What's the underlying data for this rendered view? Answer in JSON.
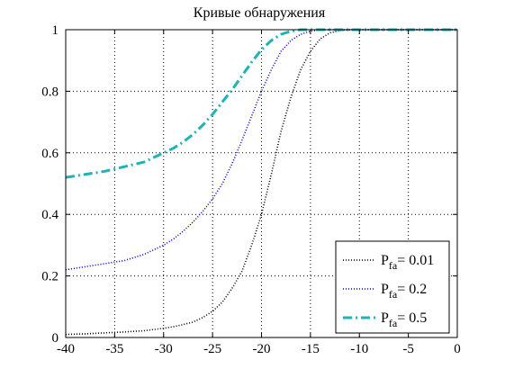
{
  "chart_data": {
    "type": "line",
    "title": "Кривые обнаружения",
    "xlabel": "",
    "ylabel": "",
    "xlim": [
      -40,
      0
    ],
    "ylim": [
      0,
      1
    ],
    "xticks": [
      -40,
      -35,
      -30,
      -25,
      -20,
      -15,
      -10,
      -5,
      0
    ],
    "yticks": [
      0,
      0.2,
      0.4,
      0.6,
      0.8,
      1
    ],
    "xtick_labels": [
      "-40",
      "-35",
      "-30",
      "-25",
      "-20",
      "-15",
      "-10",
      "-5",
      "0"
    ],
    "ytick_labels": [
      "0",
      "0.2",
      "0.4",
      "0.6",
      "0.8",
      "1"
    ],
    "grid": true,
    "legend_position": "bottom-right",
    "series": [
      {
        "name_main": "P",
        "name_sub": "fa",
        "name_rest": "= 0.01",
        "color": "#000000",
        "style": "dotted",
        "x": [
          -40,
          -38,
          -36,
          -34,
          -32,
          -30,
          -29,
          -28,
          -27,
          -26,
          -25,
          -24,
          -23,
          -22,
          -21,
          -20,
          -19,
          -18,
          -17,
          -16,
          -15,
          -14,
          -13,
          -12,
          -11,
          -10,
          -5,
          0
        ],
        "y": [
          0.01,
          0.012,
          0.015,
          0.018,
          0.022,
          0.03,
          0.035,
          0.042,
          0.05,
          0.065,
          0.085,
          0.115,
          0.16,
          0.215,
          0.3,
          0.4,
          0.53,
          0.67,
          0.78,
          0.87,
          0.93,
          0.97,
          0.99,
          0.997,
          1,
          1,
          1,
          1
        ]
      },
      {
        "name_main": "P",
        "name_sub": "fa",
        "name_rest": "= 0.2",
        "color": "#0000cc",
        "style": "dotted",
        "x": [
          -40,
          -38,
          -36,
          -34,
          -32,
          -30,
          -29,
          -28,
          -27,
          -26,
          -25,
          -24,
          -23,
          -22,
          -21,
          -20,
          -19,
          -18,
          -17,
          -16,
          -15,
          -14,
          -13,
          -12,
          -10,
          -5,
          0
        ],
        "y": [
          0.22,
          0.23,
          0.24,
          0.25,
          0.27,
          0.3,
          0.32,
          0.345,
          0.375,
          0.41,
          0.45,
          0.5,
          0.565,
          0.64,
          0.72,
          0.8,
          0.87,
          0.93,
          0.965,
          0.985,
          0.995,
          1,
          1,
          1,
          1,
          1,
          1
        ]
      },
      {
        "name_main": "P",
        "name_sub": "fa",
        "name_rest": "= 0.5",
        "color": "#1fb3b3",
        "style": "dash-dot",
        "x": [
          -40,
          -38,
          -36,
          -34,
          -32,
          -30,
          -29,
          -28,
          -27,
          -26,
          -25,
          -24,
          -23,
          -22,
          -21,
          -20,
          -19,
          -18,
          -17,
          -16,
          -15,
          -14,
          -13,
          -10,
          -5,
          0
        ],
        "y": [
          0.52,
          0.53,
          0.54,
          0.555,
          0.57,
          0.6,
          0.615,
          0.635,
          0.66,
          0.69,
          0.725,
          0.765,
          0.805,
          0.85,
          0.895,
          0.935,
          0.965,
          0.985,
          0.995,
          1,
          1,
          1,
          1,
          1,
          1,
          1
        ]
      }
    ]
  }
}
